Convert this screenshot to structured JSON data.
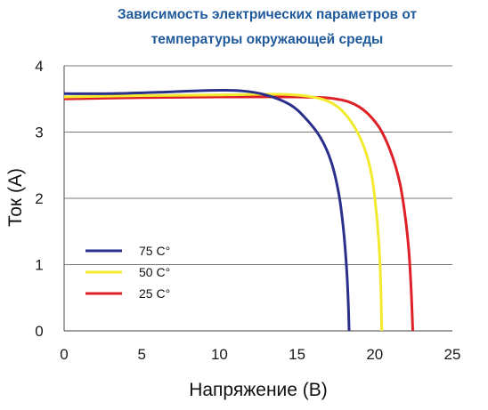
{
  "chart_data": {
    "type": "line",
    "title_lines": [
      "Зависимость электрических параметров от",
      "температуры окружающей среды"
    ],
    "xlabel": "Напряжение (В)",
    "ylabel": "Ток (А)",
    "xlim": [
      0,
      25
    ],
    "ylim": [
      0,
      4
    ],
    "xticks": [
      "0",
      "5",
      "10",
      "15",
      "20",
      "25"
    ],
    "yticks": [
      "0",
      "1",
      "2",
      "3",
      "4"
    ],
    "grid": "horizontal",
    "legend_position": "bottom-left",
    "series": [
      {
        "name": "75 C°",
        "color": "#2b2f8c",
        "points": [
          [
            0,
            3.58
          ],
          [
            3,
            3.58
          ],
          [
            6,
            3.6
          ],
          [
            9.5,
            3.63
          ],
          [
            11.5,
            3.62
          ],
          [
            13,
            3.56
          ],
          [
            14.5,
            3.42
          ],
          [
            15.5,
            3.22
          ],
          [
            16.5,
            2.92
          ],
          [
            17.2,
            2.55
          ],
          [
            17.7,
            2.05
          ],
          [
            18.0,
            1.5
          ],
          [
            18.2,
            0.9
          ],
          [
            18.3,
            0.4
          ],
          [
            18.35,
            0.0
          ]
        ]
      },
      {
        "name": "50 C°",
        "color": "#f2ea2e",
        "points": [
          [
            0,
            3.53
          ],
          [
            5,
            3.55
          ],
          [
            10,
            3.56
          ],
          [
            14,
            3.57
          ],
          [
            16.2,
            3.52
          ],
          [
            17.5,
            3.4
          ],
          [
            18.5,
            3.15
          ],
          [
            19.3,
            2.78
          ],
          [
            19.8,
            2.35
          ],
          [
            20.1,
            1.8
          ],
          [
            20.3,
            1.2
          ],
          [
            20.4,
            0.6
          ],
          [
            20.45,
            0.0
          ]
        ]
      },
      {
        "name": "25 C°",
        "color": "#de2027",
        "points": [
          [
            0,
            3.5
          ],
          [
            5,
            3.52
          ],
          [
            10,
            3.53
          ],
          [
            15,
            3.53
          ],
          [
            17.5,
            3.5
          ],
          [
            19,
            3.38
          ],
          [
            20.2,
            3.1
          ],
          [
            21.0,
            2.72
          ],
          [
            21.6,
            2.25
          ],
          [
            21.95,
            1.75
          ],
          [
            22.2,
            1.2
          ],
          [
            22.35,
            0.6
          ],
          [
            22.45,
            0.0
          ]
        ]
      }
    ]
  }
}
